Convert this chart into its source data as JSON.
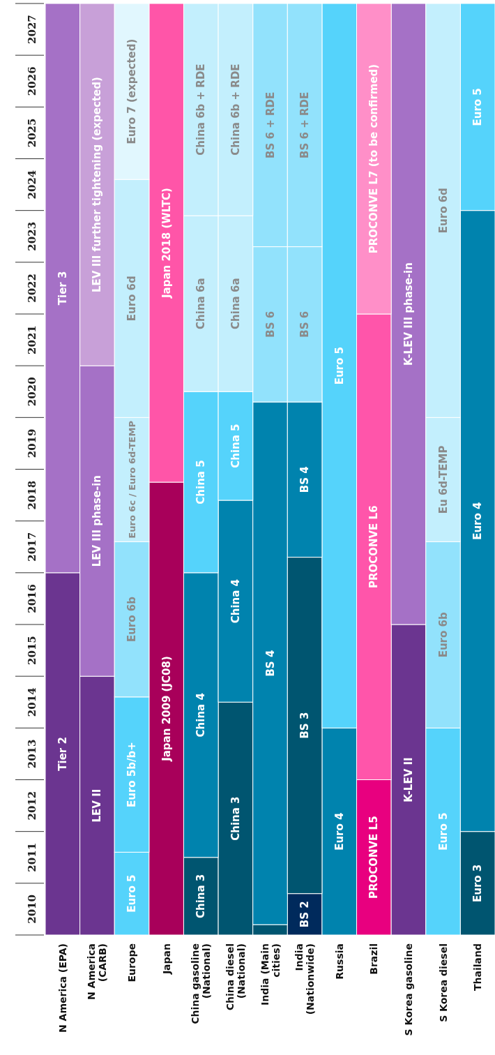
{
  "chart_data": {
    "type": "bar",
    "categories": [
      "N America (EPA)",
      "N America (CARB)",
      "Europe",
      "Japan",
      "China gasoline (National)",
      "China diesel (National)",
      "India (Main cities)",
      "India (Nationwide)",
      "Russia",
      "Brazil",
      "S Korea gasoline",
      "S Korea diesel",
      "Thailand"
    ],
    "ylim": [
      2010,
      2028
    ],
    "yticks": [
      {
        "value": 2010.5,
        "label": "2010"
      },
      {
        "value": 2011.5,
        "label": "2011"
      },
      {
        "value": 2012.5,
        "label": "2012"
      },
      {
        "value": 2013.5,
        "label": "2013"
      },
      {
        "value": 2014.5,
        "label": "2014"
      },
      {
        "value": 2015.5,
        "label": "2015"
      },
      {
        "value": 2016.5,
        "label": "2016"
      },
      {
        "value": 2017.5,
        "label": "2017"
      },
      {
        "value": 2018.5,
        "label": "2018"
      },
      {
        "value": 2019.5,
        "label": "2019"
      },
      {
        "value": 2020.5,
        "label": "2020"
      },
      {
        "value": 2021.5,
        "label": "2021"
      },
      {
        "value": 2022.5,
        "label": "2022"
      },
      {
        "value": 2023.5,
        "label": "2023"
      },
      {
        "value": 2024.5,
        "label": "2024"
      },
      {
        "value": 2025.5,
        "label": "2025"
      },
      {
        "value": 2026.5,
        "label": "2026"
      },
      {
        "value": 2027.5,
        "label": "2027"
      }
    ],
    "series": [
      {
        "base": [
          2010,
          2010,
          2010,
          2010,
          2010,
          2010,
          2010,
          2010,
          2010,
          2010,
          2010,
          2010,
          2010
        ],
        "values": [
          7,
          5,
          1.6,
          8.75,
          1.5,
          4.5,
          0.2,
          0.8,
          4,
          3,
          6,
          4,
          2
        ],
        "value_labels": [
          "Tier 2",
          "LEV II",
          "Euro 5",
          "Japan 2009 (JC08)",
          "China 3",
          "China 3",
          null,
          "BS 2",
          "Euro 4",
          "PROCONVE L5",
          "K-LEV II",
          "Euro 5",
          "Euro 3"
        ],
        "colors": [
          "#6b3590",
          "#6b3590",
          "#55d3fb",
          "#a8005a",
          "#005570",
          "#005570",
          "#005570",
          "#002a5c",
          "#0083ae",
          "#e8007f",
          "#6b3590",
          "#55d3fb",
          "#005570"
        ]
      },
      {
        "base": [
          2017,
          2015,
          2011.6,
          2018.75,
          2011.5,
          2014.5,
          2010.2,
          2010.8,
          2014,
          2013,
          2016,
          2014,
          2012
        ],
        "values": [
          11,
          6,
          3,
          9.25,
          5.5,
          3.9,
          10.1,
          6.5,
          14,
          9,
          12,
          3.6,
          12
        ],
        "value_labels": [
          "Tier 3",
          "LEV III phase-in",
          "Euro 5b/b+",
          "Japan 2018 (WLTC)",
          "China 4",
          "China 4",
          "BS 4",
          "BS 3",
          "Euro 5",
          "PROCONVE L6",
          "K-LEV III phase-in",
          "Euro 6b",
          "Euro 4"
        ],
        "colors": [
          "#a571c6",
          "#a571c6",
          "#55d3fb",
          "#ff55a8",
          "#0083ae",
          "#0083ae",
          "#0083ae",
          "#005570",
          "#55d3fb",
          "#ff55aa",
          "#a571c6",
          "#92e2fc",
          "#0083ae"
        ]
      },
      {
        "base": [
          null,
          2021,
          2014.6,
          null,
          2017,
          2018.4,
          2020.3,
          2017.3,
          null,
          2022,
          null,
          2017.6,
          2024
        ],
        "values": [
          null,
          7,
          3,
          null,
          3.5,
          2.1,
          3,
          3,
          null,
          6,
          null,
          2.4,
          4
        ],
        "value_labels": [
          null,
          "LEV III further tightening (expected)",
          "Euro 6b",
          null,
          "China 5",
          "China 5",
          "BS 6",
          "BS 4",
          null,
          "PROCONVE L7 (to be confirmed)",
          null,
          "Eu 6d-TEMP",
          "Euro 5"
        ],
        "colors": [
          null,
          "#c8a0d8",
          "#92e2fc",
          null,
          "#55d3fb",
          "#55d3fb",
          "#92e2fc",
          "#0083ae",
          null,
          "#ff8fc8",
          null,
          "#c3effd",
          "#55d3fb"
        ]
      },
      {
        "base": [
          null,
          null,
          2017.6,
          null,
          2020.5,
          2020.5,
          2023.3,
          2020.3,
          null,
          null,
          null,
          2020,
          null
        ],
        "values": [
          null,
          null,
          2.4,
          null,
          3.4,
          3.4,
          4.7,
          3,
          null,
          null,
          null,
          8,
          null
        ],
        "value_labels": [
          null,
          null,
          "Euro 6c / Euro 6d-TEMP",
          null,
          "China 6a",
          "China 6a",
          "BS 6 + RDE",
          "BS 6",
          null,
          null,
          null,
          "Euro 6d",
          null
        ],
        "colors": [
          null,
          null,
          "#c3effd",
          null,
          "#c3effd",
          "#c3effd",
          "#92e2fc",
          "#92e2fc",
          null,
          null,
          null,
          "#c3effd",
          null
        ]
      },
      {
        "base": [
          null,
          null,
          2020,
          null,
          2023.9,
          2023.9,
          null,
          2023.3,
          null,
          null,
          null,
          null,
          null
        ],
        "values": [
          null,
          null,
          4.6,
          null,
          4.1,
          4.1,
          null,
          4.7,
          null,
          null,
          null,
          null,
          null
        ],
        "value_labels": [
          null,
          null,
          "Euro 6d",
          null,
          "China 6b + RDE",
          "China 6b + RDE",
          null,
          "BS 6 + RDE",
          null,
          null,
          null,
          null,
          null
        ],
        "colors": [
          null,
          null,
          "#c3effd",
          null,
          "#c3effd",
          "#c3effd",
          null,
          "#92e2fc",
          null,
          null,
          null,
          null,
          null
        ]
      },
      {
        "base": [
          null,
          null,
          2024.6,
          null,
          null,
          null,
          null,
          null,
          null,
          null,
          null,
          null,
          null
        ],
        "values": [
          null,
          null,
          3.4,
          null,
          null,
          null,
          null,
          null,
          null,
          null,
          null,
          null,
          null
        ],
        "value_labels": [
          null,
          null,
          "Euro 7 (expected)",
          null,
          null,
          null,
          null,
          null,
          null,
          null,
          null,
          null,
          null
        ],
        "colors": [
          null,
          null,
          "#e1f7fe",
          null,
          null,
          null,
          null,
          null,
          null,
          null,
          null,
          null,
          null
        ]
      }
    ]
  }
}
